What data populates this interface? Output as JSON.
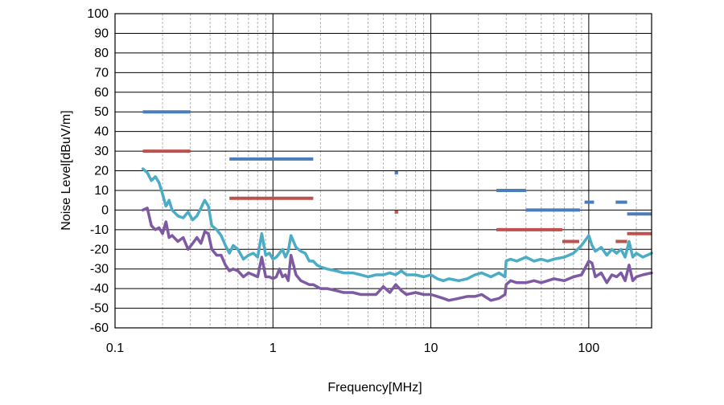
{
  "chart_data": {
    "type": "line",
    "xscale": "log",
    "xlabel": "Frequency[MHz]",
    "ylabel": "Noise Level[dBuV/m]",
    "xlim": [
      0.1,
      250
    ],
    "ylim": [
      -60,
      100
    ],
    "x_ticks": [
      0.1,
      1,
      10,
      100
    ],
    "x_tick_labels": [
      "0.1",
      "1",
      "10",
      "100"
    ],
    "y_ticks": [
      100,
      90,
      80,
      70,
      60,
      50,
      40,
      30,
      20,
      10,
      0,
      -10,
      -20,
      -30,
      -40,
      -50,
      -60
    ],
    "y_tick_labels": [
      "100",
      "90",
      "80",
      "70",
      "60",
      "50",
      "40",
      "30",
      "20",
      "10",
      "0",
      "-10",
      "-20",
      "-30",
      "-40",
      "-50",
      "-60"
    ],
    "grid": "major and minor",
    "colors": {
      "limit_upper": "#4a7ebb",
      "limit_lower": "#c0504d",
      "trace_upper": "#4bacc6",
      "trace_lower": "#7e5aa2"
    },
    "limit_segments": [
      {
        "group": "limit_upper",
        "x": [
          0.15,
          0.3
        ],
        "y": 50
      },
      {
        "group": "limit_upper",
        "x": [
          0.53,
          1.8
        ],
        "y": 26
      },
      {
        "group": "limit_upper",
        "x": [
          5.9,
          6.2
        ],
        "y": 19
      },
      {
        "group": "limit_upper",
        "x": [
          26,
          40
        ],
        "y": 10
      },
      {
        "group": "limit_upper",
        "x": [
          40,
          88
        ],
        "y": 0
      },
      {
        "group": "limit_upper",
        "x": [
          94,
          108
        ],
        "y": 4
      },
      {
        "group": "limit_upper",
        "x": [
          148,
          175
        ],
        "y": 4
      },
      {
        "group": "limit_upper",
        "x": [
          175,
          250
        ],
        "y": -2
      },
      {
        "group": "limit_lower",
        "x": [
          0.15,
          0.3
        ],
        "y": 30
      },
      {
        "group": "limit_lower",
        "x": [
          0.53,
          1.8
        ],
        "y": 6
      },
      {
        "group": "limit_lower",
        "x": [
          5.9,
          6.2
        ],
        "y": -1
      },
      {
        "group": "limit_lower",
        "x": [
          26,
          30
        ],
        "y": -10
      },
      {
        "group": "limit_lower",
        "x": [
          30,
          68
        ],
        "y": -10
      },
      {
        "group": "limit_lower",
        "x": [
          68,
          87
        ],
        "y": -16
      },
      {
        "group": "limit_lower",
        "x": [
          148,
          175
        ],
        "y": -16
      },
      {
        "group": "limit_lower",
        "x": [
          175,
          250
        ],
        "y": -12
      }
    ],
    "series": [
      {
        "group": "trace_upper",
        "x": [
          0.15,
          0.16,
          0.17,
          0.18,
          0.19,
          0.2,
          0.21,
          0.22,
          0.23,
          0.25,
          0.27,
          0.29,
          0.31,
          0.33,
          0.35,
          0.37,
          0.39,
          0.41,
          0.44,
          0.47,
          0.5,
          0.53,
          0.56,
          0.6,
          0.65,
          0.7,
          0.75,
          0.8,
          0.85,
          0.9,
          0.95,
          1.0,
          1.05,
          1.1,
          1.15,
          1.2,
          1.25,
          1.3,
          1.4,
          1.5,
          1.6,
          1.7,
          1.8,
          1.9,
          2.0,
          2.2,
          2.5,
          2.8,
          3.2,
          3.6,
          4.0,
          4.5,
          5.0,
          5.5,
          6.0,
          6.5,
          7.0,
          8.0,
          9.0,
          10,
          11,
          12,
          13,
          15,
          17,
          19,
          21,
          24,
          27,
          29.5,
          30,
          32,
          35,
          40,
          45,
          50,
          55,
          60,
          70,
          80,
          90,
          100,
          105,
          110,
          120,
          130,
          140,
          150,
          160,
          170,
          180,
          190,
          200,
          220,
          250
        ],
        "y": [
          21,
          19,
          15,
          17,
          14,
          8,
          2,
          5,
          0,
          -3,
          -4,
          -1,
          -5,
          -3,
          1,
          5,
          2,
          -8,
          -10,
          -13,
          -18,
          -22,
          -18,
          -20,
          -25,
          -23,
          -22,
          -24,
          -12,
          -23,
          -22,
          -25,
          -24,
          -22,
          -20,
          -24,
          -21,
          -13,
          -19,
          -21,
          -22,
          -26,
          -26,
          -28,
          -29,
          -30,
          -31,
          -32,
          -32,
          -33,
          -34,
          -33,
          -33,
          -32,
          -33,
          -31,
          -33,
          -33,
          -34,
          -33,
          -35,
          -36,
          -35,
          -36,
          -35,
          -33,
          -32,
          -34,
          -32,
          -34,
          -26,
          -25,
          -26,
          -24,
          -26,
          -25,
          -26,
          -25,
          -24,
          -22,
          -18,
          -13,
          -18,
          -21,
          -19,
          -23,
          -20,
          -22,
          -20,
          -24,
          -16,
          -24,
          -22,
          -24,
          -22
        ]
      },
      {
        "group": "trace_lower",
        "x": [
          0.15,
          0.16,
          0.17,
          0.18,
          0.19,
          0.2,
          0.21,
          0.22,
          0.23,
          0.25,
          0.27,
          0.29,
          0.31,
          0.33,
          0.35,
          0.37,
          0.39,
          0.41,
          0.44,
          0.47,
          0.5,
          0.53,
          0.56,
          0.6,
          0.65,
          0.7,
          0.75,
          0.8,
          0.85,
          0.9,
          0.95,
          1.0,
          1.05,
          1.1,
          1.15,
          1.2,
          1.25,
          1.3,
          1.4,
          1.5,
          1.6,
          1.7,
          1.8,
          1.9,
          2.0,
          2.2,
          2.5,
          2.8,
          3.2,
          3.6,
          4.0,
          4.5,
          5.0,
          5.5,
          6.0,
          6.5,
          7.0,
          8.0,
          9.0,
          10,
          11,
          12,
          13,
          15,
          17,
          19,
          21,
          24,
          27,
          29.5,
          30,
          32,
          35,
          40,
          45,
          50,
          55,
          60,
          70,
          80,
          90,
          100,
          105,
          110,
          120,
          130,
          140,
          150,
          160,
          170,
          180,
          190,
          200,
          220,
          250
        ],
        "y": [
          0,
          1,
          -8,
          -10,
          -9,
          -12,
          -6,
          -14,
          -13,
          -16,
          -14,
          -20,
          -17,
          -14,
          -17,
          -11,
          -12,
          -20,
          -23,
          -23,
          -28,
          -31,
          -30,
          -31,
          -34,
          -32,
          -33,
          -34,
          -24,
          -34,
          -34,
          -35,
          -34,
          -30,
          -34,
          -33,
          -36,
          -23,
          -33,
          -36,
          -37,
          -38,
          -38,
          -39,
          -40,
          -40,
          -41,
          -42,
          -42,
          -43,
          -43,
          -43,
          -39,
          -42,
          -38,
          -41,
          -43,
          -42,
          -43,
          -43,
          -44,
          -45,
          -46,
          -45,
          -44,
          -44,
          -43,
          -46,
          -45,
          -43,
          -38,
          -36,
          -37,
          -37,
          -36,
          -37,
          -36,
          -35,
          -36,
          -34,
          -33,
          -26,
          -27,
          -34,
          -32,
          -37,
          -33,
          -34,
          -32,
          -36,
          -28,
          -36,
          -34,
          -33,
          -32
        ]
      }
    ]
  }
}
